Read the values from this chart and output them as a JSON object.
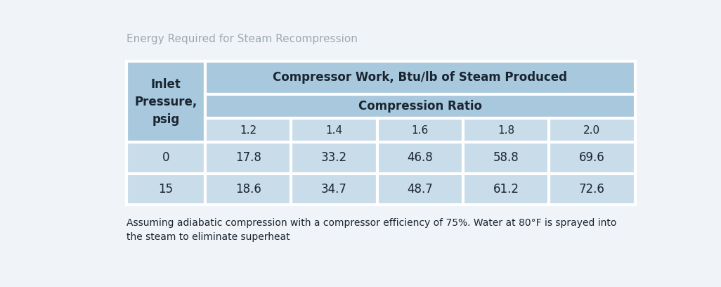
{
  "title": "Energy Required for Steam Recompression",
  "title_color": "#9ea8b0",
  "bg_color": "#f0f4f8",
  "header1_text": "Compressor Work, Btu/lb of Steam Produced",
  "header2_text": "Compression Ratio",
  "col_header_label": "Inlet\nPressure,\npsig",
  "compression_ratios": [
    "1.2",
    "1.4",
    "1.6",
    "1.8",
    "2.0"
  ],
  "row_labels": [
    "0",
    "15"
  ],
  "data": [
    [
      "17.8",
      "33.2",
      "46.8",
      "58.8",
      "69.6"
    ],
    [
      "18.6",
      "34.7",
      "48.7",
      "61.2",
      "72.6"
    ]
  ],
  "footnote": "Assuming adiabatic compression with a compressor efficiency of 75%. Water at 80°F is sprayed into\nthe steam to eliminate superheat",
  "header_bg": "#a8c8de",
  "data_bg": "#c8dcea",
  "border_color": "#ffffff",
  "text_dark": "#1a2530",
  "border_width": 3.0,
  "title_fontsize": 11,
  "header1_fontsize": 12,
  "header2_fontsize": 12,
  "ratio_fontsize": 11,
  "data_fontsize": 12,
  "footnote_fontsize": 10
}
